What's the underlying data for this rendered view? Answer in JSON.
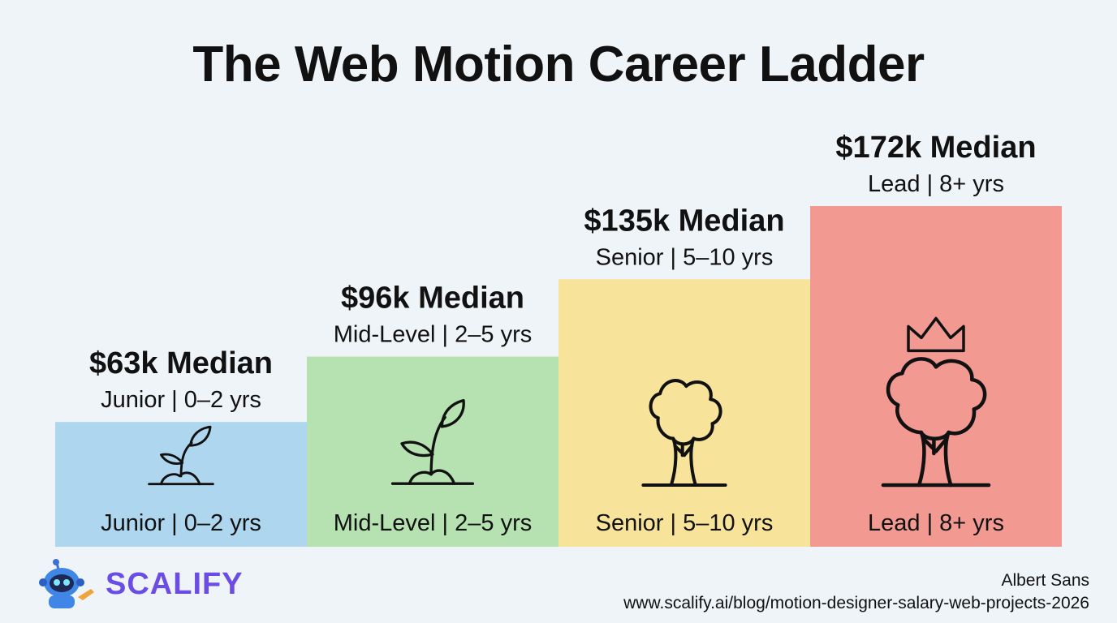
{
  "chart_data": {
    "type": "bar",
    "title": "The Web Motion Career Ladder",
    "categories": [
      "Junior | 0–2 yrs",
      "Mid-Level | 2–5 yrs",
      "Senior | 5–10 yrs",
      "Lead | 8+ yrs"
    ],
    "values": [
      63,
      96,
      135,
      172
    ],
    "value_labels": [
      "$63k Median",
      "$96k Median",
      "$135k Median",
      "$172k Median"
    ],
    "colors": [
      "#aed6ee",
      "#b5e2b0",
      "#f7e39a",
      "#f29a92"
    ],
    "icons": [
      "sprout-icon",
      "sapling-icon",
      "tree-icon",
      "crowned-tree-icon"
    ],
    "grid": false,
    "legend": "none"
  },
  "branding": {
    "logo_text": "SCALIFY",
    "author": "Albert Sans",
    "url": "www.scalify.ai/blog/motion-designer-salary-web-projects-2026"
  }
}
